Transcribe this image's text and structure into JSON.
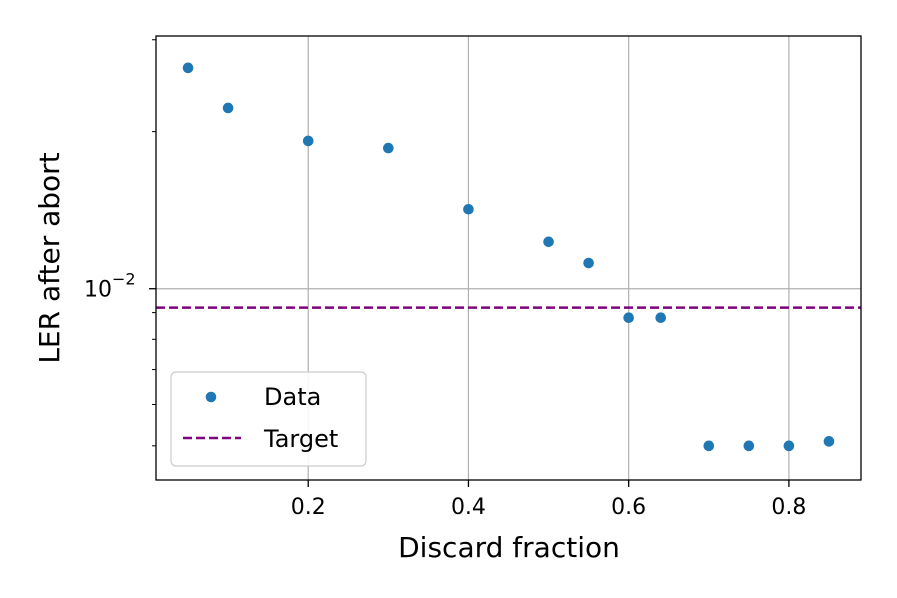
{
  "chart_data": {
    "type": "scatter",
    "xlabel": "Discard fraction",
    "ylabel": "LER after abort",
    "xlim": [
      0.01,
      0.89
    ],
    "ylim": [
      0.0043,
      0.0305
    ],
    "yscale": "log",
    "grid": true,
    "legend_position": "lower-left",
    "x_ticks": [
      0.2,
      0.4,
      0.6,
      0.8
    ],
    "x_tick_labels": [
      "0.2",
      "0.4",
      "0.6",
      "0.8"
    ],
    "y_ticks": [
      0.01
    ],
    "y_tick_labels": [
      "10",
      "−2"
    ],
    "series": [
      {
        "name": "Data",
        "kind": "scatter",
        "color": "#1f77b4",
        "x": [
          0.05,
          0.1,
          0.2,
          0.3,
          0.4,
          0.5,
          0.55,
          0.6,
          0.64,
          0.7,
          0.75,
          0.8,
          0.85
        ],
        "y": [
          0.0265,
          0.0222,
          0.0192,
          0.0186,
          0.0142,
          0.0123,
          0.0112,
          0.0088,
          0.0088,
          0.005,
          0.005,
          0.005,
          0.0051
        ]
      },
      {
        "name": "Target",
        "kind": "hline",
        "color": "#800080",
        "y": 0.0092
      }
    ]
  }
}
